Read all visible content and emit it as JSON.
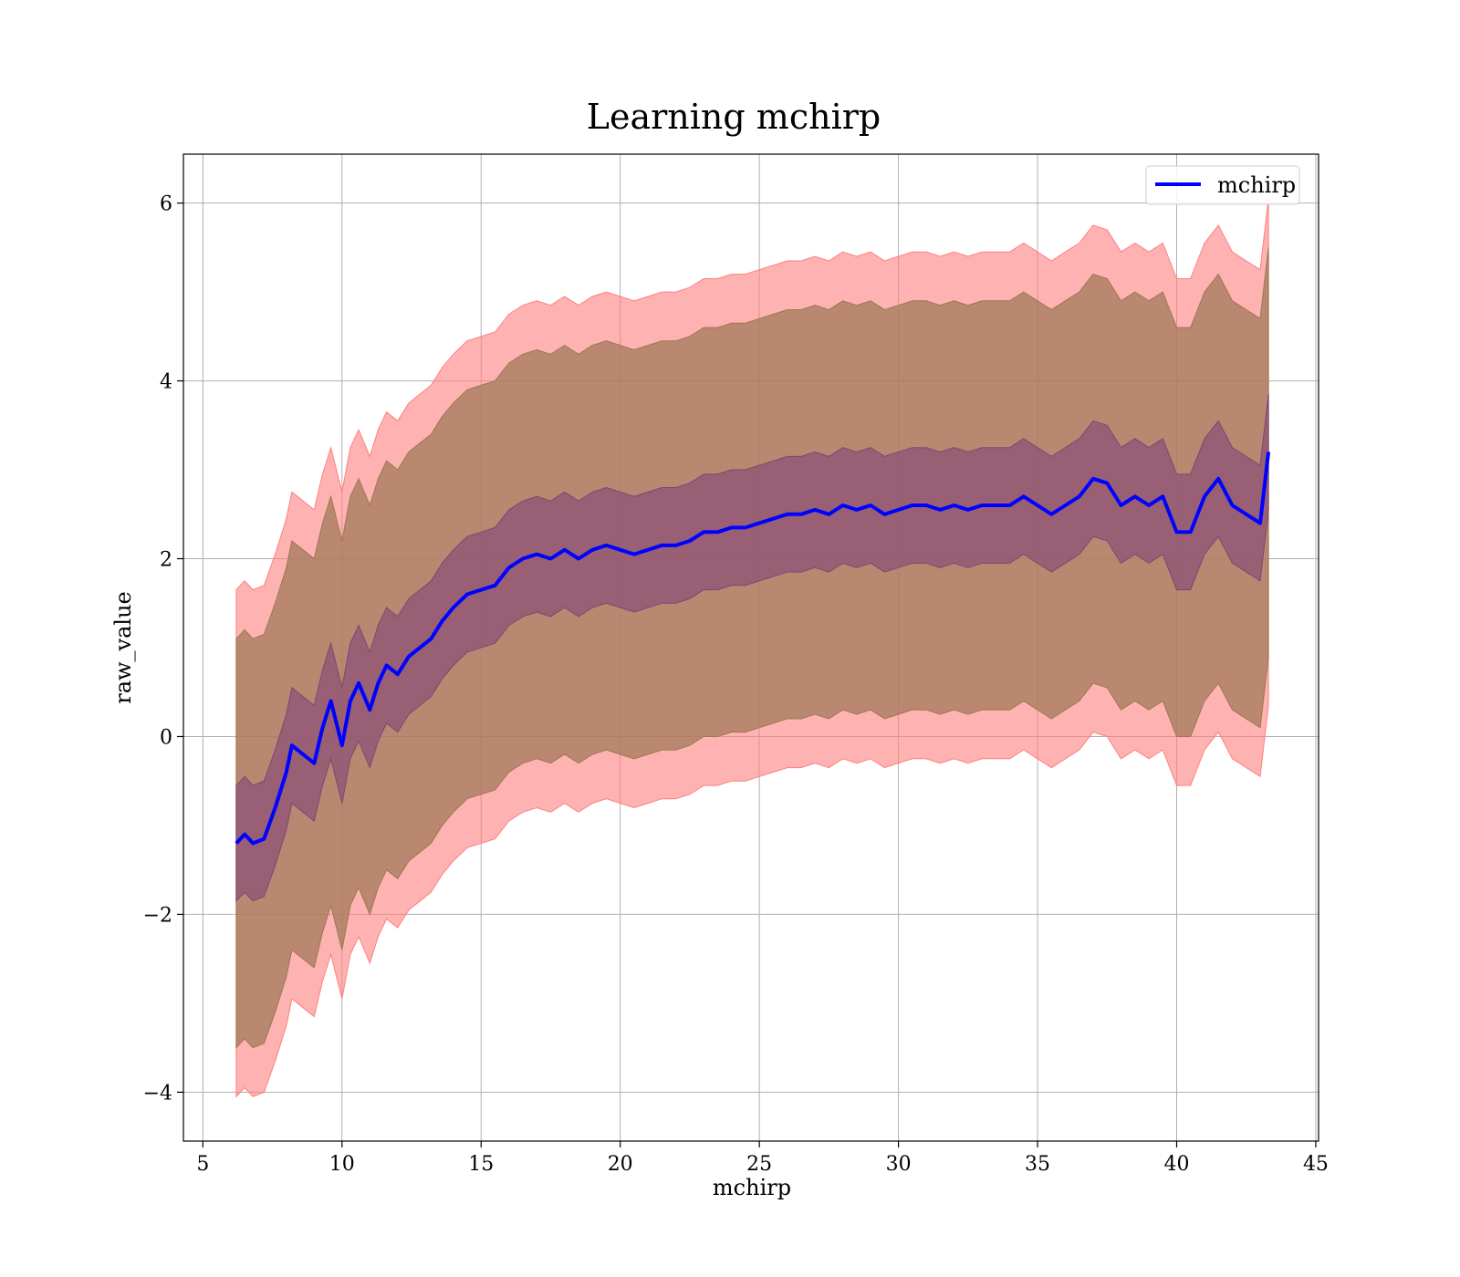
{
  "chart_data": {
    "type": "line",
    "title": "Learning mchirp",
    "xlabel": "mchirp",
    "ylabel": "raw_value",
    "xlim": [
      4.3,
      45.1
    ],
    "ylim": [
      -4.55,
      6.55
    ],
    "x_ticks": [
      5,
      10,
      15,
      20,
      25,
      30,
      35,
      40,
      45
    ],
    "x_tick_labels": [
      "5",
      "10",
      "15",
      "20",
      "25",
      "30",
      "35",
      "40",
      "45"
    ],
    "y_ticks": [
      -4,
      -2,
      0,
      2,
      4,
      6
    ],
    "y_tick_labels": [
      "−4",
      "−2",
      "0",
      "2",
      "4",
      "6"
    ],
    "grid": true,
    "legend_position": "top-right",
    "colors": {
      "line": "#0000ff",
      "band_outer": "#ff7f7f",
      "band_mid": "#a3785a",
      "band_inner": "#8c4f78",
      "grid": "#b0b0b0"
    },
    "series": [
      {
        "name": "mchirp",
        "x": [
          6.2,
          6.5,
          6.8,
          7.2,
          7.6,
          8.0,
          8.2,
          8.6,
          9.0,
          9.3,
          9.6,
          10.0,
          10.3,
          10.6,
          11.0,
          11.3,
          11.6,
          12.0,
          12.4,
          12.8,
          13.2,
          13.6,
          14.0,
          14.5,
          15.0,
          15.5,
          16.0,
          16.5,
          17.0,
          17.5,
          18.0,
          18.5,
          19.0,
          19.5,
          20.0,
          20.5,
          21.0,
          21.5,
          22.0,
          22.5,
          23.0,
          23.5,
          24.0,
          24.5,
          25.0,
          25.5,
          26.0,
          26.5,
          27.0,
          27.5,
          28.0,
          28.5,
          29.0,
          29.5,
          30.0,
          30.5,
          31.0,
          31.5,
          32.0,
          32.5,
          33.0,
          33.5,
          34.0,
          34.5,
          35.0,
          35.5,
          36.0,
          36.5,
          37.0,
          37.5,
          38.0,
          38.5,
          39.0,
          39.5,
          40.0,
          40.5,
          41.0,
          41.5,
          42.0,
          42.5,
          43.0,
          43.3
        ],
        "y": [
          -1.2,
          -1.1,
          -1.2,
          -1.15,
          -0.8,
          -0.4,
          -0.1,
          -0.2,
          -0.3,
          0.1,
          0.4,
          -0.1,
          0.4,
          0.6,
          0.3,
          0.6,
          0.8,
          0.7,
          0.9,
          1.0,
          1.1,
          1.3,
          1.45,
          1.6,
          1.65,
          1.7,
          1.9,
          2.0,
          2.05,
          2.0,
          2.1,
          2.0,
          2.1,
          2.15,
          2.1,
          2.05,
          2.1,
          2.15,
          2.15,
          2.2,
          2.3,
          2.3,
          2.35,
          2.35,
          2.4,
          2.45,
          2.5,
          2.5,
          2.55,
          2.5,
          2.6,
          2.55,
          2.6,
          2.5,
          2.55,
          2.6,
          2.6,
          2.55,
          2.6,
          2.55,
          2.6,
          2.6,
          2.6,
          2.7,
          2.6,
          2.5,
          2.6,
          2.7,
          2.9,
          2.85,
          2.6,
          2.7,
          2.6,
          2.7,
          2.3,
          2.3,
          2.7,
          2.9,
          2.6,
          2.5,
          2.4,
          3.2
        ],
        "band_inner_half_width": 0.65,
        "band_mid_half_width": 2.3,
        "band_outer_half_width": 2.85
      }
    ]
  }
}
